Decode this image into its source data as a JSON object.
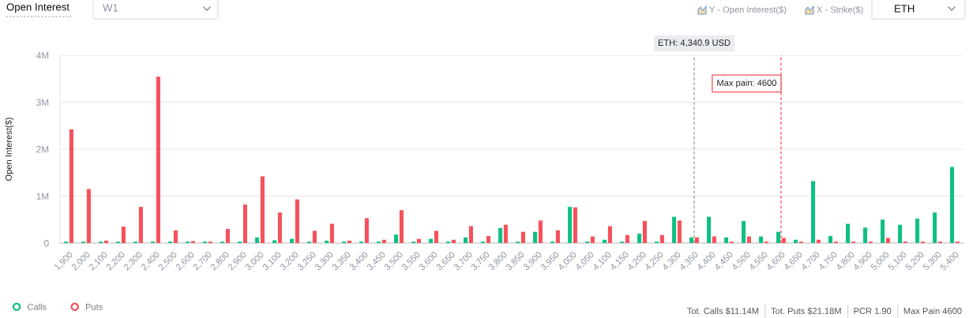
{
  "chart_data": {
    "type": "bar",
    "title": "Open Interest",
    "ylabel": "Open Interest($)",
    "categories": [
      "1,900",
      "2,000",
      "2,100",
      "2,200",
      "2,300",
      "2,400",
      "2,500",
      "2,600",
      "2,700",
      "2,800",
      "2,900",
      "3,000",
      "3,100",
      "3,200",
      "3,250",
      "3,300",
      "3,350",
      "3,400",
      "3,450",
      "3,500",
      "3,550",
      "3,600",
      "3,650",
      "3,700",
      "3,750",
      "3,800",
      "3,850",
      "3,900",
      "3,950",
      "4,000",
      "4,050",
      "4,100",
      "4,150",
      "4,200",
      "4,250",
      "4,300",
      "4,350",
      "4,400",
      "4,450",
      "4,500",
      "4,550",
      "4,600",
      "4,650",
      "4,700",
      "4,750",
      "4,800",
      "4,900",
      "5,000",
      "5,100",
      "5,200",
      "5,300",
      "5,400"
    ],
    "series": [
      {
        "name": "Calls",
        "color": "#0ebf84",
        "values": [
          30000,
          30000,
          30000,
          30000,
          30000,
          30000,
          30000,
          30000,
          30000,
          30000,
          30000,
          120000,
          60000,
          90000,
          30000,
          50000,
          30000,
          30000,
          30000,
          180000,
          30000,
          90000,
          30000,
          120000,
          30000,
          320000,
          30000,
          240000,
          30000,
          770000,
          30000,
          70000,
          30000,
          200000,
          30000,
          560000,
          120000,
          560000,
          120000,
          470000,
          140000,
          240000,
          70000,
          1320000,
          150000,
          410000,
          330000,
          500000,
          390000,
          520000,
          650000,
          1620000
        ]
      },
      {
        "name": "Puts",
        "color": "#f5515b",
        "values": [
          2420000,
          1150000,
          50000,
          350000,
          770000,
          3540000,
          270000,
          40000,
          30000,
          300000,
          820000,
          1420000,
          650000,
          930000,
          260000,
          410000,
          50000,
          530000,
          70000,
          700000,
          90000,
          260000,
          70000,
          360000,
          150000,
          390000,
          240000,
          480000,
          270000,
          760000,
          140000,
          360000,
          170000,
          470000,
          170000,
          480000,
          120000,
          140000,
          30000,
          140000,
          30000,
          110000,
          30000,
          70000,
          30000,
          30000,
          30000,
          110000,
          30000,
          30000,
          30000,
          30000
        ]
      }
    ],
    "ylim": [
      0,
      4000000
    ],
    "yticks": [
      0,
      {
        "value": 1000000,
        "label": "1M"
      },
      {
        "value": 2000000,
        "label": "2M"
      },
      {
        "value": 3000000,
        "label": "3M"
      },
      {
        "value": 4000000,
        "label": "4M"
      }
    ],
    "grid": "y",
    "legend": "bottom left",
    "ref_lines": [
      {
        "axis": "x",
        "value": "4,350",
        "label": "ETH: 4,340.9 USD",
        "color": "#9a9a9a",
        "line_style": "dashed"
      },
      {
        "axis": "x",
        "value": "4,600",
        "label": "Max pain: 4600",
        "color": "#f5515b",
        "line_style": "dashed"
      }
    ],
    "annotations": [
      "W1",
      "Y - Open Interest($)",
      "X - Strike($)",
      "ETH",
      "Tot. Calls $11.14M",
      "Tot. Puts $21.18M",
      "PCR 1.90",
      "Max Pain 4600"
    ]
  }
}
